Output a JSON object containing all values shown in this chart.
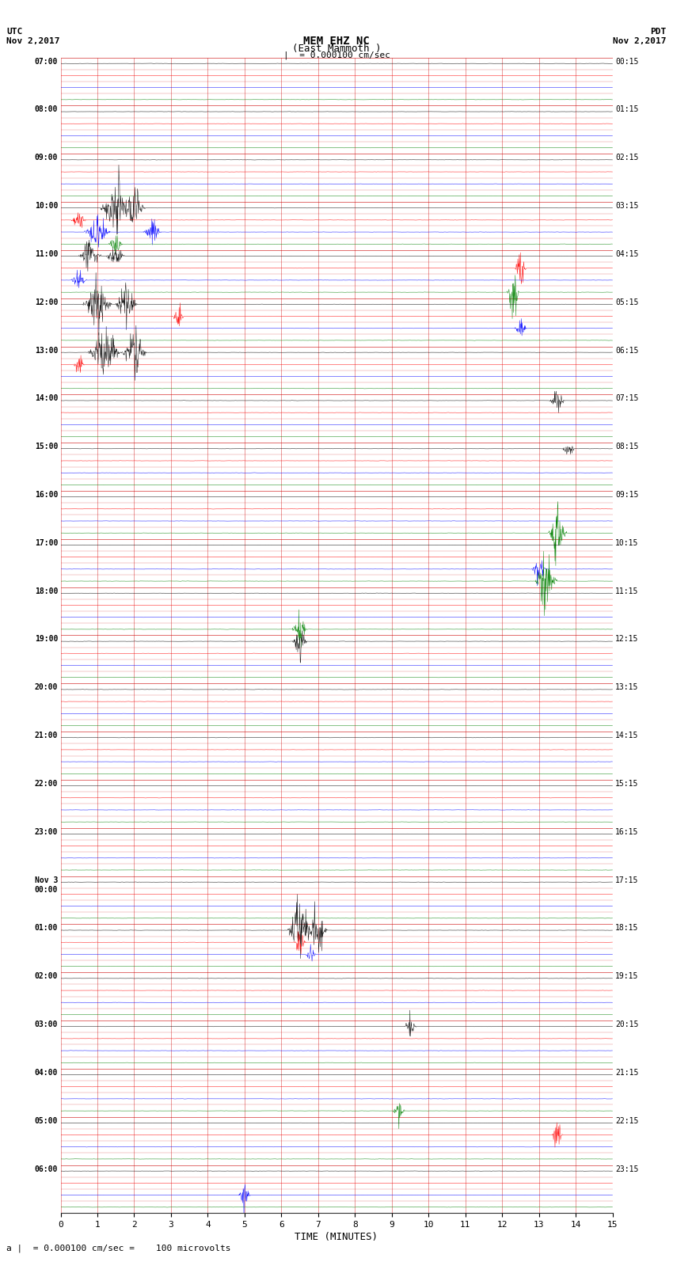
{
  "title_line1": "MEM EHZ NC",
  "title_line2": "(East Mammoth )",
  "scale_label": "= 0.000100 cm/sec",
  "footer_label": "= 0.000100 cm/sec =    100 microvolts",
  "utc_label": "UTC",
  "utc_date": "Nov 2,2017",
  "pdt_label": "PDT",
  "pdt_date": "Nov 2,2017",
  "xlabel": "TIME (MINUTES)",
  "left_times": [
    "07:00",
    "08:00",
    "09:00",
    "10:00",
    "11:00",
    "12:00",
    "13:00",
    "14:00",
    "15:00",
    "16:00",
    "17:00",
    "18:00",
    "19:00",
    "20:00",
    "21:00",
    "22:00",
    "23:00",
    "Nov 3",
    "01:00",
    "02:00",
    "03:00",
    "04:00",
    "05:00",
    "06:00"
  ],
  "left_times2": [
    "",
    "",
    "",
    "",
    "",
    "",
    "",
    "",
    "",
    "",
    "",
    "",
    "",
    "",
    "",
    "",
    "",
    "00:00",
    "",
    "",
    "",
    "",
    "",
    ""
  ],
  "right_times": [
    "00:15",
    "01:15",
    "02:15",
    "03:15",
    "04:15",
    "05:15",
    "06:15",
    "07:15",
    "08:15",
    "09:15",
    "10:15",
    "11:15",
    "12:15",
    "13:15",
    "14:15",
    "15:15",
    "16:15",
    "17:15",
    "18:15",
    "19:15",
    "20:15",
    "21:15",
    "22:15",
    "23:15"
  ],
  "n_rows": 24,
  "n_subrows": 4,
  "colors": [
    "black",
    "red",
    "blue",
    "green"
  ],
  "bg_color": "#ffffff",
  "grid_color": "#cc0000",
  "fig_width": 8.5,
  "fig_height": 16.13,
  "xmin": 0,
  "xmax": 15,
  "xticks": [
    0,
    1,
    2,
    3,
    4,
    5,
    6,
    7,
    8,
    9,
    10,
    11,
    12,
    13,
    14,
    15
  ]
}
